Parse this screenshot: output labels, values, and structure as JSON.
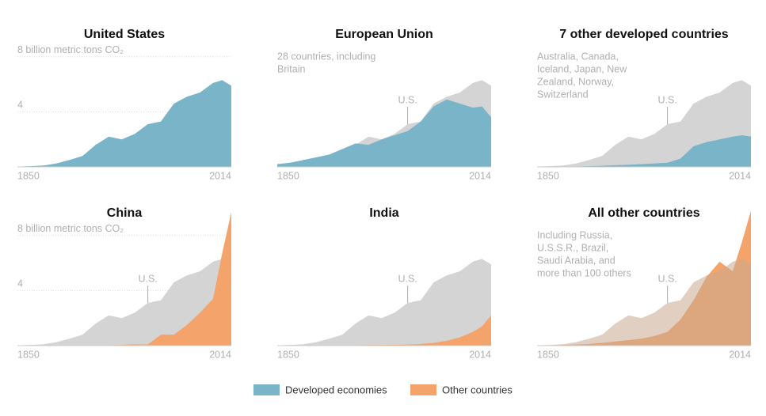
{
  "chart_data": [
    {
      "type": "area",
      "title": "United States",
      "x": [
        1850,
        1860,
        1870,
        1880,
        1890,
        1900,
        1910,
        1920,
        1930,
        1940,
        1950,
        1960,
        1970,
        1980,
        1990,
        2000,
        2007,
        2014
      ],
      "series": [
        {
          "color": "#7ab4c8",
          "values": [
            0.02,
            0.05,
            0.1,
            0.25,
            0.5,
            0.8,
            1.6,
            2.2,
            2.0,
            2.4,
            3.1,
            3.3,
            4.6,
            5.1,
            5.4,
            6.1,
            6.3,
            5.9
          ]
        }
      ],
      "xlim": [
        1850,
        2014
      ],
      "xticks": [
        1850,
        2014
      ],
      "ylim": [
        0,
        10
      ],
      "yticks": [
        4,
        {
          "value": 8,
          "label": "8 billion metric tons CO₂"
        }
      ],
      "grid": true
    },
    {
      "type": "area",
      "title": "European Union",
      "note": [
        "28 countries, including",
        "Britain"
      ],
      "x": [
        1850,
        1860,
        1870,
        1880,
        1890,
        1900,
        1910,
        1920,
        1930,
        1940,
        1950,
        1960,
        1970,
        1980,
        1990,
        2000,
        2007,
        2014
      ],
      "series": [
        {
          "name": "U.S.",
          "color": "#d4d4d4",
          "values": [
            0.02,
            0.05,
            0.1,
            0.25,
            0.5,
            0.8,
            1.6,
            2.2,
            2.0,
            2.4,
            3.1,
            3.3,
            4.6,
            5.1,
            5.4,
            6.1,
            6.3,
            5.9
          ]
        },
        {
          "color": "#7ab4c8",
          "values": [
            0.2,
            0.3,
            0.5,
            0.7,
            0.9,
            1.3,
            1.7,
            1.6,
            2.0,
            2.3,
            2.6,
            3.3,
            4.4,
            4.9,
            4.6,
            4.3,
            4.4,
            3.6
          ]
        }
      ],
      "xlim": [
        1850,
        2014
      ],
      "xticks": [
        1850,
        2014
      ],
      "ylim": [
        0,
        10
      ]
    },
    {
      "type": "area",
      "title": "7 other developed countries",
      "note": [
        "Australia, Canada,",
        "Iceland, Japan, New",
        "Zealand, Norway,",
        "Switzerland"
      ],
      "x": [
        1850,
        1860,
        1870,
        1880,
        1890,
        1900,
        1910,
        1920,
        1930,
        1940,
        1950,
        1960,
        1970,
        1980,
        1990,
        2000,
        2007,
        2014
      ],
      "series": [
        {
          "name": "U.S.",
          "color": "#d4d4d4",
          "values": [
            0.02,
            0.05,
            0.1,
            0.25,
            0.5,
            0.8,
            1.6,
            2.2,
            2.0,
            2.4,
            3.1,
            3.3,
            4.6,
            5.1,
            5.4,
            6.1,
            6.3,
            5.9
          ]
        },
        {
          "color": "#7ab4c8",
          "values": [
            0.01,
            0.01,
            0.02,
            0.03,
            0.05,
            0.08,
            0.12,
            0.15,
            0.2,
            0.25,
            0.3,
            0.6,
            1.5,
            1.8,
            2.0,
            2.2,
            2.3,
            2.2
          ]
        }
      ],
      "xlim": [
        1850,
        2014
      ],
      "xticks": [
        1850,
        2014
      ],
      "ylim": [
        0,
        10
      ]
    },
    {
      "type": "area",
      "title": "China",
      "x": [
        1850,
        1860,
        1870,
        1880,
        1890,
        1900,
        1910,
        1920,
        1930,
        1940,
        1950,
        1960,
        1970,
        1980,
        1990,
        2000,
        2007,
        2014
      ],
      "series": [
        {
          "name": "U.S.",
          "color": "#d4d4d4",
          "values": [
            0.02,
            0.05,
            0.1,
            0.25,
            0.5,
            0.8,
            1.6,
            2.2,
            2.0,
            2.4,
            3.1,
            3.3,
            4.6,
            5.1,
            5.4,
            6.1,
            6.3,
            5.9
          ]
        },
        {
          "color": "#f4a46b",
          "values": [
            0,
            0,
            0,
            0,
            0,
            0.01,
            0.02,
            0.03,
            0.05,
            0.1,
            0.08,
            0.8,
            0.8,
            1.5,
            2.4,
            3.4,
            6.7,
            9.7
          ]
        }
      ],
      "xlim": [
        1850,
        2014
      ],
      "xticks": [
        1850,
        2014
      ],
      "ylim": [
        0,
        10
      ],
      "yticks": [
        4,
        {
          "value": 8,
          "label": "8 billion metric tons CO₂"
        }
      ],
      "grid": true
    },
    {
      "type": "area",
      "title": "India",
      "x": [
        1850,
        1860,
        1870,
        1880,
        1890,
        1900,
        1910,
        1920,
        1930,
        1940,
        1950,
        1960,
        1970,
        1980,
        1990,
        2000,
        2007,
        2014
      ],
      "series": [
        {
          "name": "U.S.",
          "color": "#d4d4d4",
          "values": [
            0.02,
            0.05,
            0.1,
            0.25,
            0.5,
            0.8,
            1.6,
            2.2,
            2.0,
            2.4,
            3.1,
            3.3,
            4.6,
            5.1,
            5.4,
            6.1,
            6.3,
            5.9
          ]
        },
        {
          "color": "#f4a46b",
          "values": [
            0,
            0,
            0,
            0,
            0.01,
            0.02,
            0.03,
            0.04,
            0.05,
            0.06,
            0.08,
            0.12,
            0.2,
            0.35,
            0.6,
            1.0,
            1.4,
            2.2
          ]
        }
      ],
      "xlim": [
        1850,
        2014
      ],
      "xticks": [
        1850,
        2014
      ],
      "ylim": [
        0,
        10
      ]
    },
    {
      "type": "area",
      "title": "All other countries",
      "note": [
        "Including Russia,",
        "U.S.S.R., Brazil,",
        "Saudi Arabia, and",
        "more than 100 others"
      ],
      "x": [
        1850,
        1860,
        1870,
        1880,
        1890,
        1900,
        1910,
        1920,
        1930,
        1940,
        1950,
        1960,
        1970,
        1980,
        1990,
        2000,
        2007,
        2014
      ],
      "series": [
        {
          "color": "#f4a46b",
          "values": [
            0.02,
            0.03,
            0.05,
            0.08,
            0.12,
            0.2,
            0.3,
            0.4,
            0.5,
            0.7,
            1.0,
            1.9,
            3.3,
            5.0,
            6.1,
            5.4,
            7.5,
            9.8
          ]
        },
        {
          "name": "U.S.",
          "color": "#c8a890",
          "values": [
            0.02,
            0.05,
            0.1,
            0.25,
            0.5,
            0.8,
            1.6,
            2.2,
            2.0,
            2.4,
            3.1,
            3.3,
            4.6,
            5.1,
            5.4,
            6.1,
            6.3,
            5.9
          ]
        }
      ],
      "xlim": [
        1850,
        2014
      ],
      "xticks": [
        1850,
        2014
      ],
      "ylim": [
        0,
        10
      ]
    }
  ],
  "legend": [
    {
      "name": "Developed economies",
      "color": "#7ab4c8"
    },
    {
      "name": "Other countries",
      "color": "#f4a46b"
    }
  ]
}
